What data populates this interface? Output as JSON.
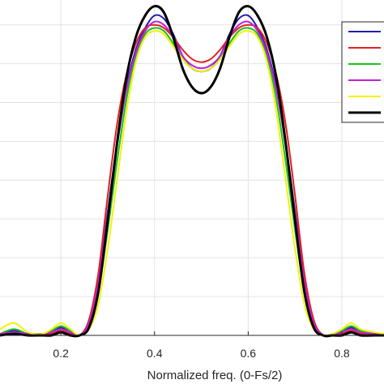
{
  "chart_data": {
    "type": "line",
    "title": "",
    "xlabel": "Normalized freq. (0-Fs/2)",
    "ylabel": "",
    "xlim": [
      0.07,
      0.89
    ],
    "ylim": [
      0,
      1.08
    ],
    "x_ticks": [
      0.2,
      0.4,
      0.6,
      0.8
    ],
    "x_tick_labels": [
      "0.2",
      "0.4",
      "0.6",
      "0.8"
    ],
    "y_gridlines": [
      0.125,
      0.25,
      0.375,
      0.5,
      0.625,
      0.75,
      0.875,
      1.0
    ],
    "grid": true,
    "legend": {
      "placement": "top-right",
      "entries": [
        {
          "color": "#1f1fb4"
        },
        {
          "color": "#e02020"
        },
        {
          "color": "#19c219"
        },
        {
          "color": "#c41fd8"
        },
        {
          "color": "#f2f20d"
        },
        {
          "color": "#000000"
        }
      ]
    },
    "series": [
      {
        "color": "#1f1fb4",
        "linewidth": 2,
        "x": [
          0.07,
          0.1,
          0.13,
          0.16,
          0.18,
          0.2,
          0.22,
          0.24,
          0.26,
          0.28,
          0.3,
          0.32,
          0.34,
          0.36,
          0.38,
          0.4,
          0.42,
          0.44,
          0.46,
          0.48,
          0.5,
          0.52,
          0.54,
          0.56,
          0.58,
          0.6,
          0.62,
          0.64,
          0.66,
          0.68,
          0.7,
          0.72,
          0.74,
          0.76,
          0.78,
          0.8,
          0.82,
          0.84,
          0.87,
          0.89
        ],
        "values": [
          0.005,
          0.015,
          0.005,
          0.005,
          0.01,
          0.025,
          0.01,
          0.0,
          0.045,
          0.18,
          0.4,
          0.62,
          0.8,
          0.92,
          0.99,
          1.03,
          1.02,
          0.97,
          0.9,
          0.86,
          0.85,
          0.86,
          0.9,
          0.97,
          1.02,
          1.03,
          0.99,
          0.92,
          0.8,
          0.62,
          0.4,
          0.18,
          0.045,
          0.0,
          0.0,
          0.01,
          0.025,
          0.01,
          0.005,
          0.005
        ]
      },
      {
        "color": "#e02020",
        "linewidth": 2,
        "x": [
          0.07,
          0.1,
          0.13,
          0.16,
          0.18,
          0.2,
          0.22,
          0.24,
          0.26,
          0.28,
          0.3,
          0.32,
          0.34,
          0.36,
          0.38,
          0.4,
          0.42,
          0.44,
          0.46,
          0.48,
          0.5,
          0.52,
          0.54,
          0.56,
          0.58,
          0.6,
          0.62,
          0.64,
          0.66,
          0.68,
          0.7,
          0.72,
          0.74,
          0.76,
          0.78,
          0.8,
          0.82,
          0.84,
          0.87,
          0.89
        ],
        "values": [
          0.005,
          0.01,
          0.005,
          0.005,
          0.005,
          0.015,
          0.005,
          0.0,
          0.05,
          0.2,
          0.45,
          0.68,
          0.84,
          0.94,
          0.99,
          1.0,
          0.99,
          0.96,
          0.92,
          0.89,
          0.88,
          0.89,
          0.92,
          0.96,
          0.99,
          1.0,
          0.99,
          0.94,
          0.84,
          0.68,
          0.45,
          0.2,
          0.05,
          0.0,
          0.0,
          0.005,
          0.015,
          0.005,
          0.005,
          0.005
        ]
      },
      {
        "color": "#19c219",
        "linewidth": 2,
        "x": [
          0.07,
          0.1,
          0.13,
          0.16,
          0.18,
          0.2,
          0.22,
          0.24,
          0.26,
          0.28,
          0.3,
          0.32,
          0.34,
          0.36,
          0.38,
          0.4,
          0.42,
          0.44,
          0.46,
          0.48,
          0.5,
          0.52,
          0.54,
          0.56,
          0.58,
          0.6,
          0.62,
          0.64,
          0.66,
          0.68,
          0.7,
          0.72,
          0.74,
          0.76,
          0.78,
          0.8,
          0.82,
          0.84,
          0.87,
          0.89
        ],
        "values": [
          0.005,
          0.02,
          0.005,
          0.005,
          0.015,
          0.03,
          0.015,
          0.0,
          0.03,
          0.14,
          0.34,
          0.56,
          0.76,
          0.9,
          0.97,
          0.99,
          0.98,
          0.94,
          0.89,
          0.86,
          0.85,
          0.86,
          0.89,
          0.94,
          0.98,
          0.99,
          0.97,
          0.9,
          0.76,
          0.56,
          0.34,
          0.14,
          0.03,
          0.0,
          0.0,
          0.015,
          0.03,
          0.015,
          0.005,
          0.005
        ]
      },
      {
        "color": "#c41fd8",
        "linewidth": 2,
        "x": [
          0.07,
          0.1,
          0.13,
          0.16,
          0.18,
          0.2,
          0.22,
          0.24,
          0.26,
          0.28,
          0.3,
          0.32,
          0.34,
          0.36,
          0.38,
          0.4,
          0.42,
          0.44,
          0.46,
          0.48,
          0.5,
          0.52,
          0.54,
          0.56,
          0.58,
          0.6,
          0.62,
          0.64,
          0.66,
          0.68,
          0.7,
          0.72,
          0.74,
          0.76,
          0.78,
          0.8,
          0.82,
          0.84,
          0.87,
          0.89
        ],
        "values": [
          0.005,
          0.01,
          0.005,
          0.005,
          0.01,
          0.02,
          0.01,
          0.0,
          0.04,
          0.17,
          0.39,
          0.61,
          0.79,
          0.91,
          0.98,
          1.01,
          1.0,
          0.96,
          0.9,
          0.87,
          0.86,
          0.87,
          0.9,
          0.96,
          1.0,
          1.01,
          0.98,
          0.91,
          0.79,
          0.61,
          0.39,
          0.17,
          0.04,
          0.0,
          0.0,
          0.01,
          0.02,
          0.01,
          0.005,
          0.005
        ]
      },
      {
        "color": "#f2f20d",
        "linewidth": 2,
        "x": [
          0.07,
          0.1,
          0.13,
          0.16,
          0.18,
          0.2,
          0.22,
          0.24,
          0.26,
          0.28,
          0.3,
          0.32,
          0.34,
          0.36,
          0.38,
          0.4,
          0.42,
          0.44,
          0.46,
          0.48,
          0.5,
          0.52,
          0.54,
          0.56,
          0.58,
          0.6,
          0.62,
          0.64,
          0.66,
          0.68,
          0.7,
          0.72,
          0.74,
          0.76,
          0.78,
          0.8,
          0.82,
          0.84,
          0.87,
          0.89
        ],
        "values": [
          0.02,
          0.04,
          0.01,
          0.005,
          0.02,
          0.04,
          0.02,
          0.0,
          0.02,
          0.1,
          0.28,
          0.5,
          0.72,
          0.88,
          0.96,
          0.98,
          0.97,
          0.93,
          0.89,
          0.86,
          0.85,
          0.86,
          0.89,
          0.93,
          0.97,
          0.98,
          0.96,
          0.88,
          0.72,
          0.5,
          0.28,
          0.1,
          0.02,
          0.0,
          0.005,
          0.02,
          0.04,
          0.02,
          0.01,
          0.005
        ]
      },
      {
        "color": "#000000",
        "linewidth": 3,
        "x": [
          0.07,
          0.1,
          0.13,
          0.16,
          0.18,
          0.2,
          0.22,
          0.24,
          0.26,
          0.28,
          0.3,
          0.32,
          0.34,
          0.36,
          0.38,
          0.4,
          0.42,
          0.44,
          0.46,
          0.48,
          0.5,
          0.52,
          0.54,
          0.56,
          0.58,
          0.6,
          0.62,
          0.64,
          0.66,
          0.68,
          0.7,
          0.72,
          0.74,
          0.76,
          0.78,
          0.8,
          0.82,
          0.84,
          0.87,
          0.89
        ],
        "values": [
          0.0,
          0.005,
          0.0,
          0.0,
          0.0,
          0.01,
          0.0,
          0.0,
          0.025,
          0.14,
          0.37,
          0.62,
          0.83,
          0.96,
          1.03,
          1.06,
          1.04,
          0.96,
          0.86,
          0.8,
          0.78,
          0.8,
          0.86,
          0.96,
          1.04,
          1.06,
          1.03,
          0.96,
          0.83,
          0.62,
          0.37,
          0.14,
          0.025,
          0.0,
          0.0,
          0.0,
          0.01,
          0.0,
          0.0,
          0.0
        ]
      }
    ]
  }
}
